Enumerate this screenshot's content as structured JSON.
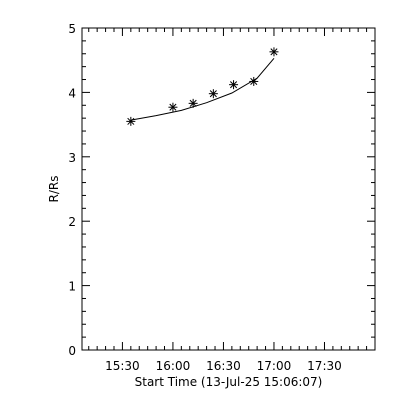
{
  "chart_data": {
    "type": "scatter",
    "title": "",
    "xlabel": "Start Time (13-Jul-25 15:06:07)",
    "ylabel": "R/Rs",
    "x_ticks": [
      "15:30",
      "16:00",
      "16:30",
      "17:00",
      "17:30"
    ],
    "y_ticks": [
      "0",
      "1",
      "2",
      "3",
      "4",
      "5"
    ],
    "xlim": [
      "15:06",
      "18:00"
    ],
    "ylim": [
      0,
      5
    ],
    "grid": false,
    "series": [
      {
        "marker": "asterisk",
        "points": [
          {
            "x": "15:35",
            "y": 3.55
          },
          {
            "x": "16:00",
            "y": 3.77
          },
          {
            "x": "16:12",
            "y": 3.83
          },
          {
            "x": "16:24",
            "y": 3.98
          },
          {
            "x": "16:36",
            "y": 4.12
          },
          {
            "x": "16:48",
            "y": 4.17
          },
          {
            "x": "17:00",
            "y": 4.63
          }
        ]
      }
    ],
    "fit": {
      "type": "line",
      "points": [
        {
          "x": "15:35",
          "y": 3.57
        },
        {
          "x": "15:50",
          "y": 3.64
        },
        {
          "x": "16:05",
          "y": 3.72
        },
        {
          "x": "16:20",
          "y": 3.84
        },
        {
          "x": "16:35",
          "y": 3.99
        },
        {
          "x": "16:50",
          "y": 4.22
        },
        {
          "x": "17:00",
          "y": 4.53
        }
      ]
    },
    "colors": {
      "axes": "#000000",
      "marks": "#000000"
    }
  }
}
